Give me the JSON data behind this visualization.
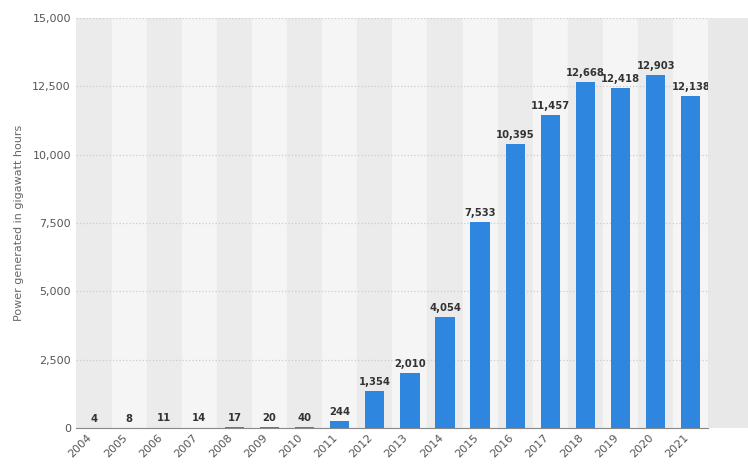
{
  "years": [
    "2004",
    "2005",
    "2006",
    "2007",
    "2008",
    "2009",
    "2010",
    "2011",
    "2012",
    "2013",
    "2014",
    "2015",
    "2016",
    "2017",
    "2018",
    "2019",
    "2020",
    "2021"
  ],
  "values": [
    4,
    8,
    11,
    14,
    17,
    20,
    40,
    244,
    1354,
    2010,
    4054,
    7533,
    10395,
    11457,
    12668,
    12418,
    12903,
    12138
  ],
  "bar_color": "#2e86de",
  "ylabel": "Power generated in gigawatt hours",
  "ylim": [
    0,
    15000
  ],
  "yticks": [
    0,
    2500,
    5000,
    7500,
    10000,
    12500,
    15000
  ],
  "ytick_labels": [
    "0",
    "2,500",
    "5,000",
    "7,500",
    "10,000",
    "12,500",
    "15,000"
  ],
  "value_labels": [
    "4",
    "8",
    "11",
    "14",
    "17",
    "20",
    "40",
    "244",
    "1,354",
    "2,010",
    "4,054",
    "7,533",
    "10,395",
    "11,457",
    "12,668",
    "12,418",
    "12,903",
    "12,138"
  ],
  "background_color": "#ffffff",
  "plot_bg_color": "#f2f2f2",
  "col_bg_even": "#ebebeb",
  "col_bg_odd": "#f5f5f5",
  "grid_color": "#cccccc",
  "bar_width": 0.55,
  "label_fontsize": 7.2,
  "ylabel_fontsize": 8.0,
  "tick_fontsize": 8.0,
  "right_panel_color": "#e8e8e8"
}
